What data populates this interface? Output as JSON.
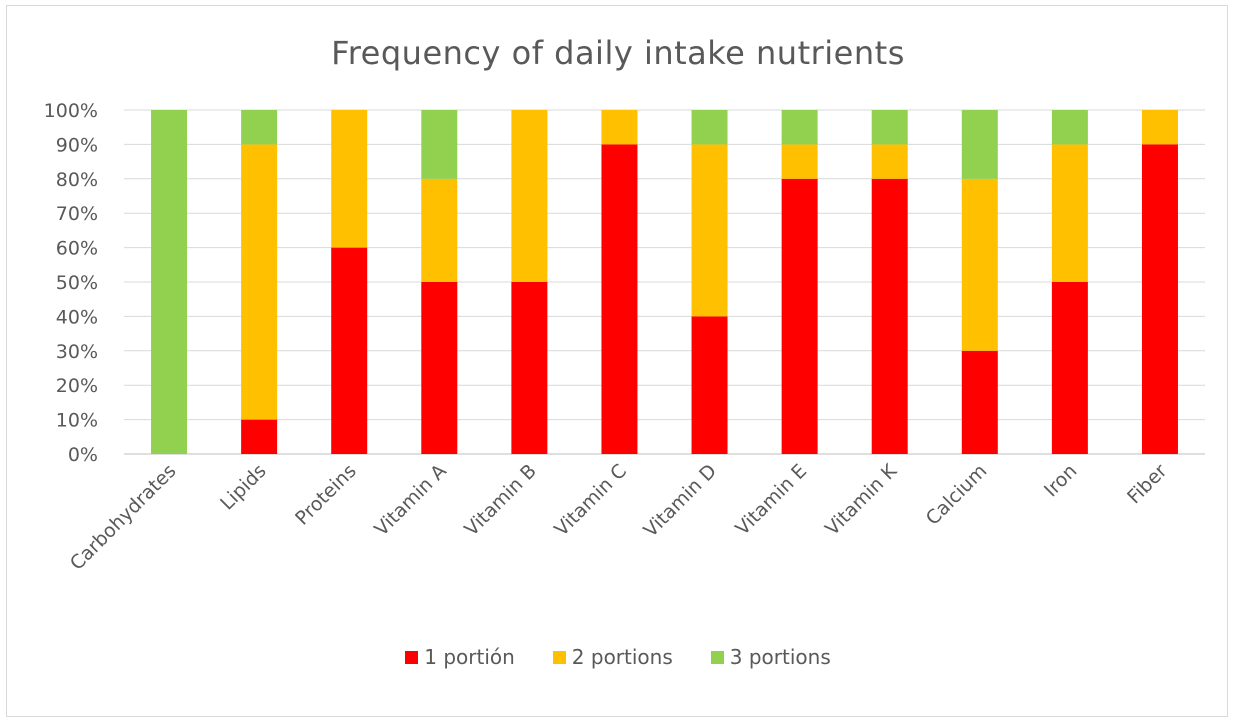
{
  "chart_data": {
    "type": "bar",
    "stacked": true,
    "title": "Frequency of daily intake nutrients",
    "xlabel": "",
    "ylabel": "",
    "ylim": [
      0,
      100
    ],
    "yticks": [
      "0%",
      "10%",
      "20%",
      "30%",
      "40%",
      "50%",
      "60%",
      "70%",
      "80%",
      "90%",
      "100%"
    ],
    "categories": [
      "Carbohydrates",
      "Lipids",
      "Proteins",
      "Vitamin A",
      "Vitamin B",
      "Vitamin C",
      "Vitamin D",
      "Vitamin E",
      "Vitamin K",
      "Calcium",
      "Iron",
      "Fiber"
    ],
    "series": [
      {
        "name": "1 portión",
        "color": "#ff0000",
        "values": [
          0,
          10,
          60,
          50,
          50,
          90,
          40,
          80,
          80,
          30,
          50,
          90
        ]
      },
      {
        "name": "2 portions",
        "color": "#ffc000",
        "values": [
          0,
          80,
          40,
          30,
          50,
          10,
          50,
          10,
          10,
          50,
          40,
          10
        ]
      },
      {
        "name": "3 portions",
        "color": "#92d050",
        "values": [
          100,
          10,
          0,
          20,
          0,
          0,
          10,
          10,
          10,
          20,
          10,
          0
        ]
      }
    ],
    "grid": true,
    "legend_position": "bottom"
  }
}
